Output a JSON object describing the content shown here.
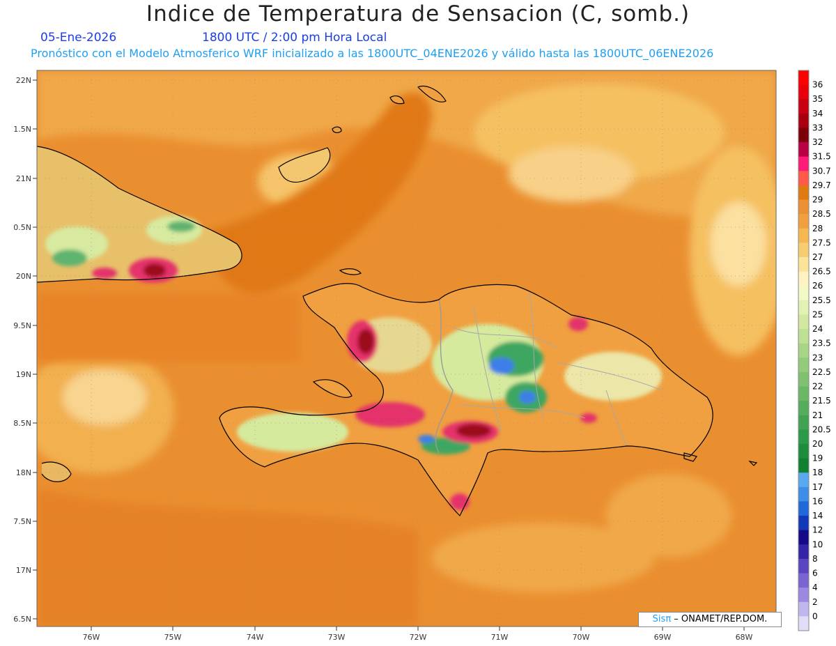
{
  "header": {
    "title": "Indice de Temperatura de Sensacion (C, somb.)",
    "date": "05-Ene-2026",
    "time": "1800 UTC / 2:00 pm Hora Local",
    "forecast": "Pronóstico con el Modelo Atmosferico WRF inicializado a las 1800UTC_04ENE2026 y válido hasta las 1800UTC_06ENE2026"
  },
  "map": {
    "lat_ticks": [
      "22N",
      "1.5N",
      "21N",
      "0.5N",
      "20N",
      "9.5N",
      "19N",
      "8.5N",
      "18N",
      "7.5N",
      "17N",
      "6.5N"
    ],
    "lon_ticks": [
      "76W",
      "75W",
      "74W",
      "73W",
      "72W",
      "71W",
      "70W",
      "69W",
      "68W"
    ],
    "colors": {
      "ocean": "#e98a2b",
      "ocean_light": "#f0aa4a",
      "land_warm": "#f08a4a",
      "land_cool": "#d9eba6",
      "green": "#3da660",
      "blue": "#3d7ee8",
      "hot": "#e4306a",
      "very_hot": "#9c0a1e"
    }
  },
  "colorbar": {
    "labels": [
      "36",
      "35",
      "34",
      "33",
      "32",
      "31.5",
      "30.7",
      "29.7",
      "29",
      "28.5",
      "28",
      "27.5",
      "27",
      "26.5",
      "26",
      "25.5",
      "25",
      "24",
      "23.5",
      "23",
      "22.5",
      "22",
      "21.5",
      "21",
      "20.5",
      "20",
      "19",
      "18",
      "17",
      "16",
      "14",
      "12",
      "10",
      "8",
      "6",
      "4",
      "2",
      "0"
    ],
    "colors": [
      "#ff0000",
      "#e8000a",
      "#c70012",
      "#a8000e",
      "#7d0008",
      "#b80044",
      "#ff1a77",
      "#ff5a4a",
      "#e07a10",
      "#ec9035",
      "#f0a040",
      "#f5b850",
      "#f8cc70",
      "#fbe39a",
      "#fdf2c0",
      "#f2f8c6",
      "#e3f1b3",
      "#d0e8a0",
      "#bde092",
      "#a8d585",
      "#94cb7a",
      "#7fc170",
      "#6ab766",
      "#55ad5c",
      "#40a352",
      "#2b9948",
      "#1c8c3d",
      "#108032",
      "#5aa8ee",
      "#3d8ee6",
      "#2068d8",
      "#1038b8",
      "#140a88",
      "#3624a8",
      "#5a44c0",
      "#7a64d2",
      "#9c88e0",
      "#c2b6ee",
      "#e2dcf6"
    ]
  },
  "credit": {
    "sis": "Sis",
    "pi": "π",
    "rest": "– ONAMET/REP.DOM."
  }
}
